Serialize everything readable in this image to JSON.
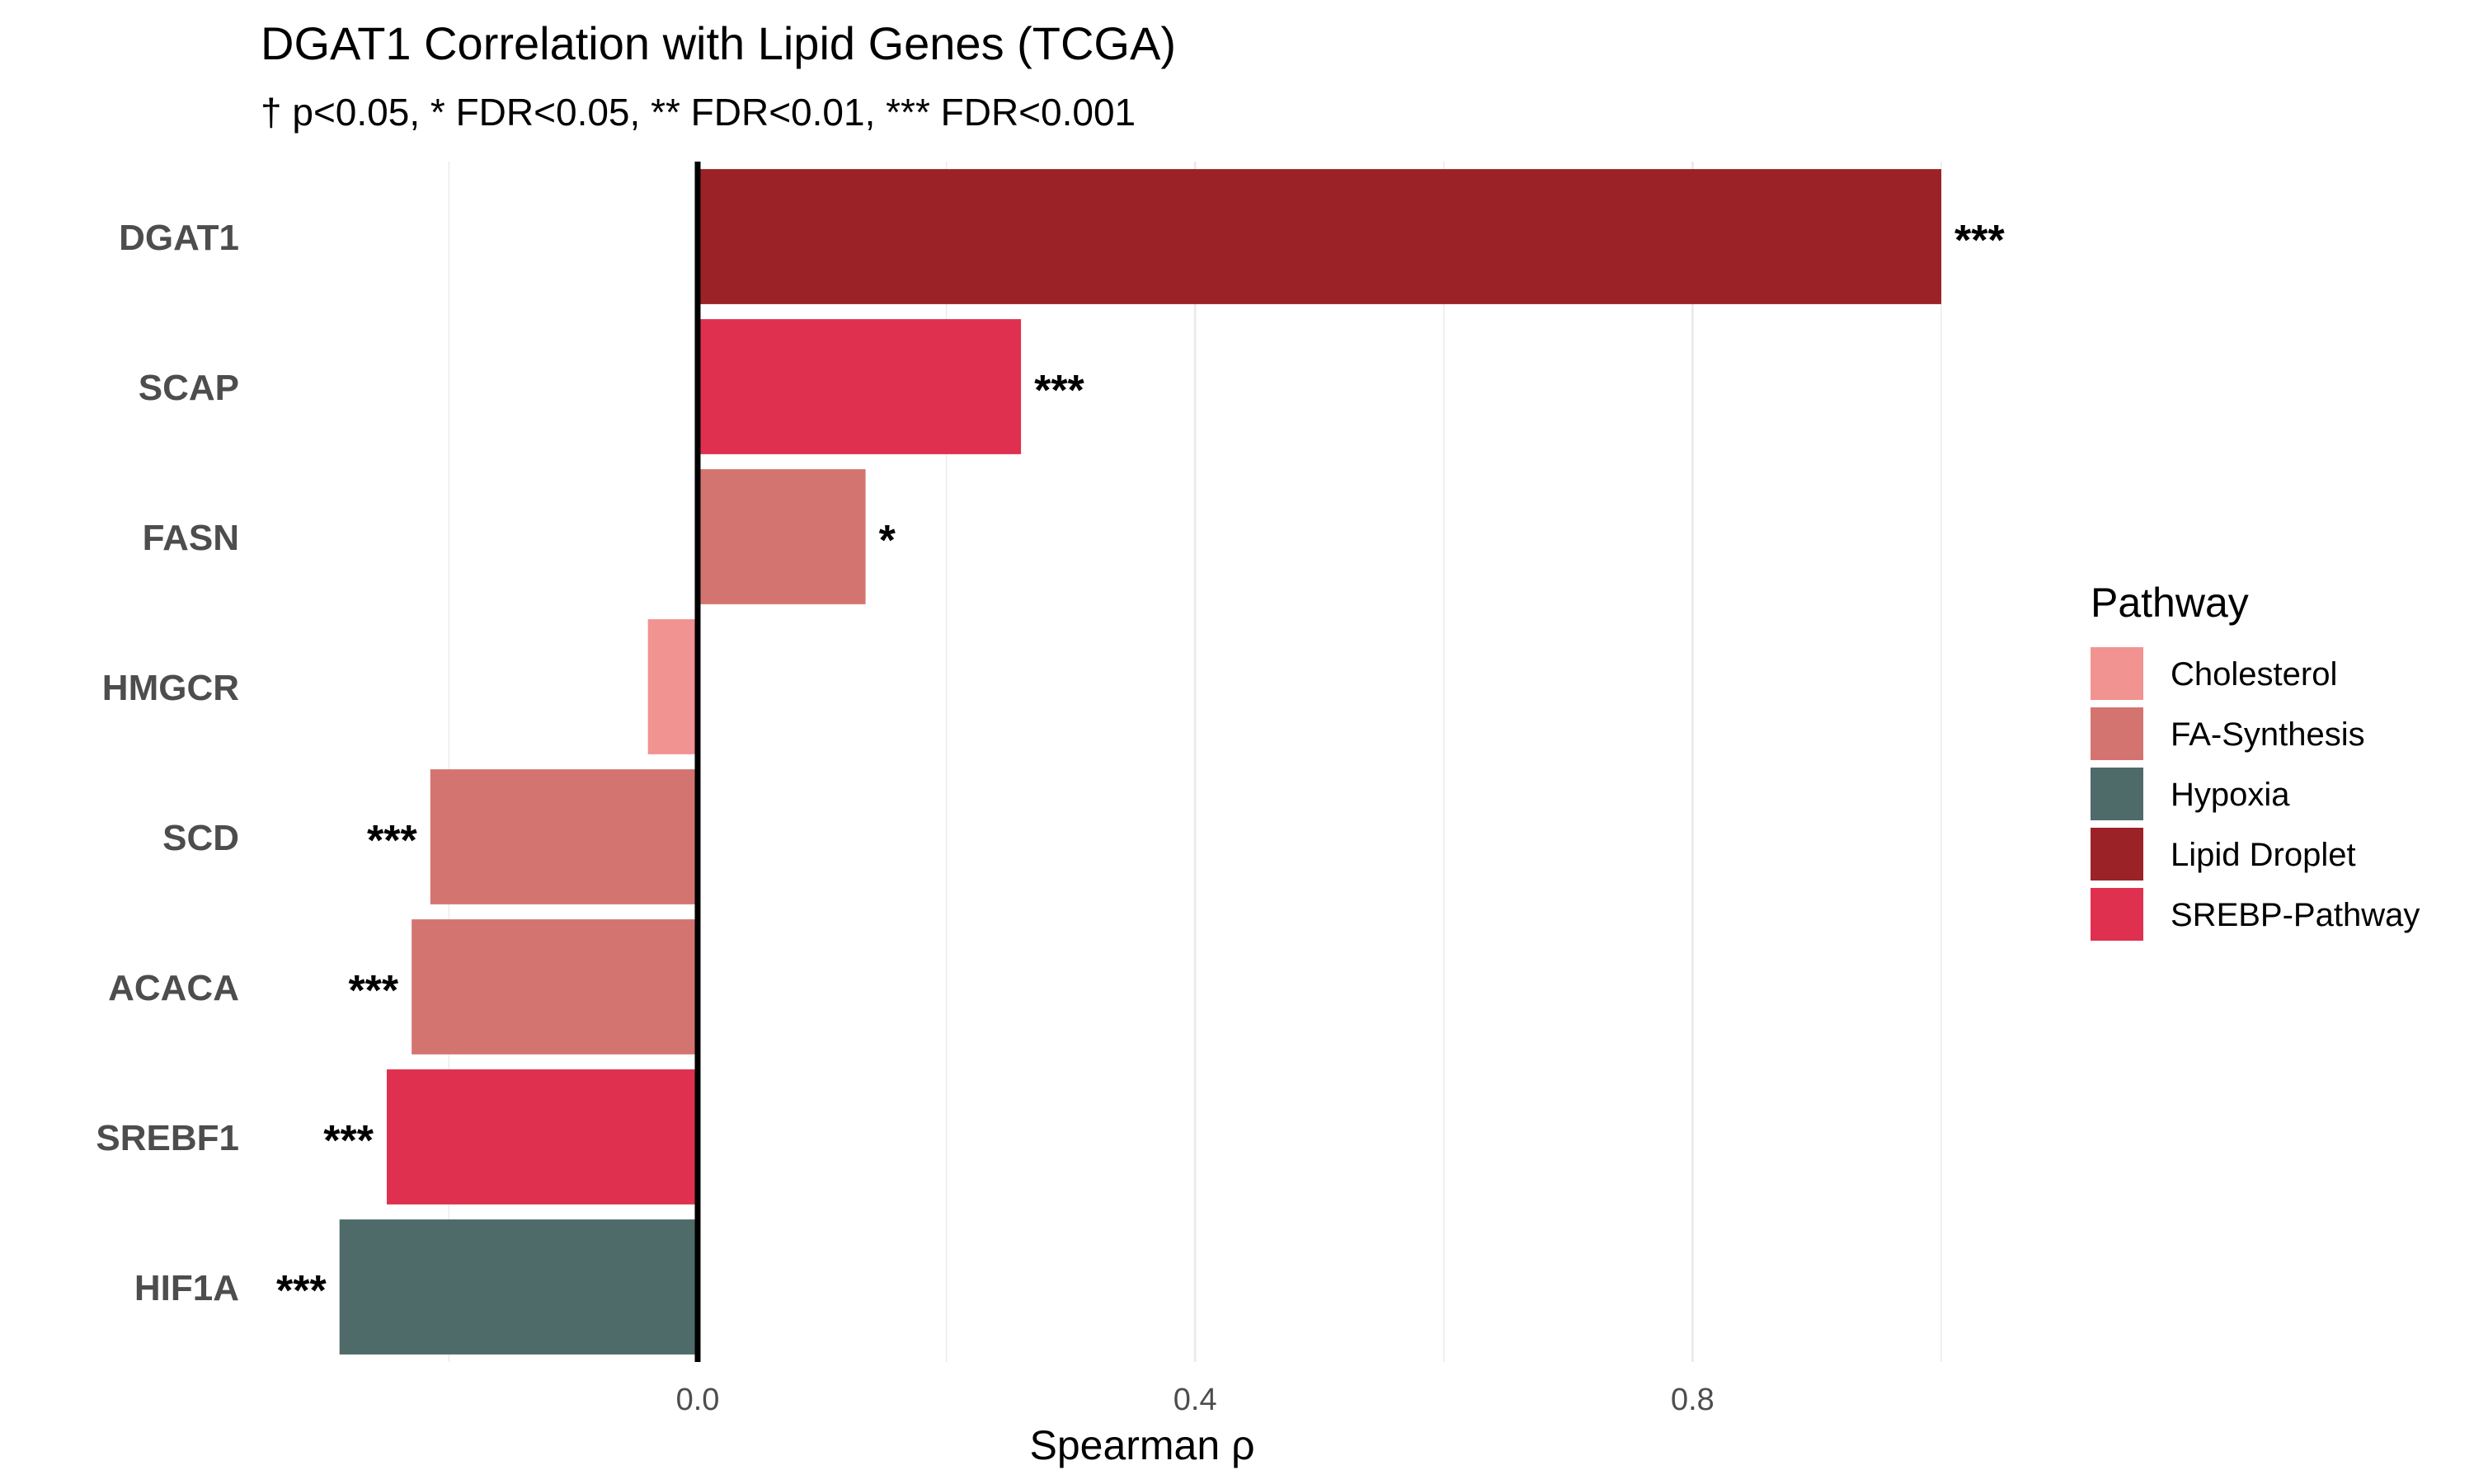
{
  "chart_data": {
    "type": "bar",
    "orientation": "horizontal",
    "title": "DGAT1 Correlation with Lipid Genes (TCGA)",
    "subtitle": "† p<0.05, * FDR<0.05, ** FDR<0.01, *** FDR<0.001",
    "xlabel": "Spearman ρ",
    "ylabel": "",
    "xlim": [
      -0.29,
      1.07
    ],
    "xticks": [
      0.0,
      0.4,
      0.8
    ],
    "xtick_labels": [
      "0.0",
      "0.4",
      "0.8"
    ],
    "grid": true,
    "legend_title": "Pathway",
    "legend_position": "right",
    "categories": [
      "DGAT1",
      "SCAP",
      "FASN",
      "HMGCR",
      "SCD",
      "ACACA",
      "SREBF1",
      "HIF1A"
    ],
    "values": [
      1.0,
      0.26,
      0.135,
      -0.04,
      -0.215,
      -0.23,
      -0.25,
      -0.288
    ],
    "pathways": [
      "Lipid Droplet",
      "SREBP-Pathway",
      "FA-Synthesis",
      "Cholesterol",
      "FA-Synthesis",
      "FA-Synthesis",
      "SREBP-Pathway",
      "Hypoxia"
    ],
    "significance": [
      "***",
      "***",
      "*",
      "",
      "***",
      "***",
      "***",
      "***"
    ],
    "legend": [
      {
        "name": "Cholesterol",
        "color": "#f09391"
      },
      {
        "name": "FA-Synthesis",
        "color": "#d47471"
      },
      {
        "name": "Hypoxia",
        "color": "#4f6b69"
      },
      {
        "name": "Lipid Droplet",
        "color": "#9b2226"
      },
      {
        "name": "SREBP-Pathway",
        "color": "#e0304f"
      }
    ]
  }
}
